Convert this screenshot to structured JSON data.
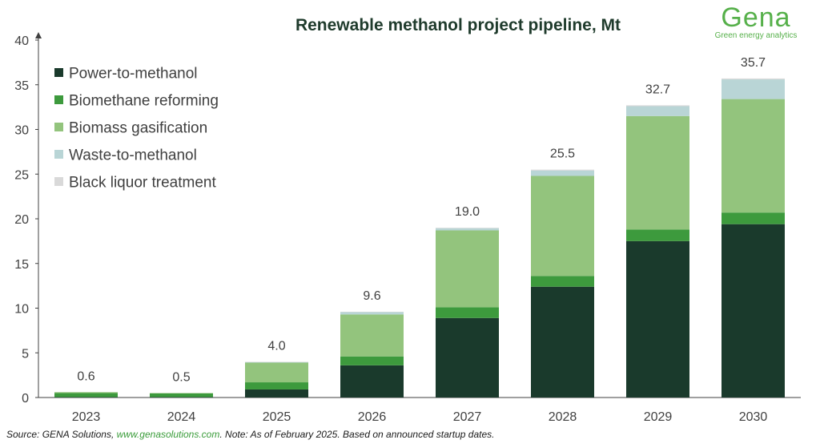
{
  "logo": {
    "name": "Gena",
    "tagline": "Green energy analytics",
    "color": "#56b04a"
  },
  "source": {
    "prefix": "Source: GENA Solutions, ",
    "link": "www.genasolutions.com",
    "suffix": ". Note: As of February 2025. Based on announced startup dates."
  },
  "chart_data": {
    "type": "bar",
    "stacked": true,
    "title": "Renewable methanol project pipeline, Mt",
    "xlabel": "",
    "ylabel": "",
    "categories": [
      "2023",
      "2024",
      "2025",
      "2026",
      "2027",
      "2028",
      "2029",
      "2030"
    ],
    "ylim": [
      0,
      40
    ],
    "yticks": [
      0,
      5,
      10,
      15,
      20,
      25,
      30,
      35,
      40
    ],
    "grid": false,
    "legend_position": "top-left",
    "series": [
      {
        "name": "Power-to-methanol",
        "color": "#1a3a2c",
        "values": [
          0.05,
          0.05,
          0.9,
          3.6,
          8.9,
          12.4,
          17.5,
          19.4
        ]
      },
      {
        "name": "Biomethane reforming",
        "color": "#3d9a3d",
        "values": [
          0.45,
          0.4,
          0.8,
          1.0,
          1.2,
          1.2,
          1.3,
          1.3
        ]
      },
      {
        "name": "Biomass gasification",
        "color": "#93c47d",
        "values": [
          0.1,
          0.05,
          2.2,
          4.7,
          8.6,
          11.2,
          12.7,
          12.7
        ]
      },
      {
        "name": "Waste-to-methanol",
        "color": "#b9d5d6",
        "values": [
          0.0,
          0.0,
          0.05,
          0.25,
          0.25,
          0.6,
          1.1,
          2.2
        ]
      },
      {
        "name": "Black liquor treatment",
        "color": "#d9d9d9",
        "values": [
          0.0,
          0.0,
          0.05,
          0.05,
          0.05,
          0.1,
          0.1,
          0.1
        ]
      }
    ],
    "totals": [
      "0.6",
      "0.5",
      "4.0",
      "9.6",
      "19.0",
      "25.5",
      "32.7",
      "35.7"
    ]
  }
}
